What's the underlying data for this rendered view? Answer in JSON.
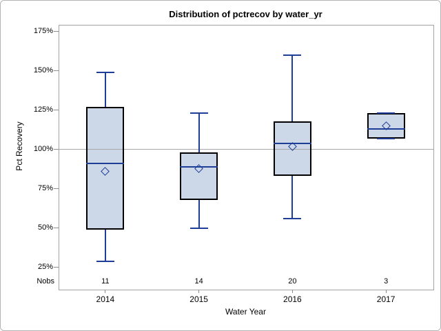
{
  "figure": {
    "title": "Distribution of pctrecov by water_yr",
    "y_axis_label": "Pct Recovery",
    "x_axis_label": "Water Year",
    "nobs_label": "Nobs"
  },
  "chart_data": {
    "type": "boxplot",
    "title": "Distribution of pctrecov by water_yr",
    "xlabel": "Water Year",
    "ylabel": "Pct Recovery",
    "categories": [
      "2014",
      "2015",
      "2016",
      "2017"
    ],
    "nobs": [
      11,
      14,
      20,
      3
    ],
    "y_ticks": [
      {
        "value": 175,
        "label": "175%"
      },
      {
        "value": 150,
        "label": "150%"
      },
      {
        "value": 125,
        "label": "125%"
      },
      {
        "value": 100,
        "label": "100%"
      },
      {
        "value": 75,
        "label": "75%"
      },
      {
        "value": 50,
        "label": "50%"
      },
      {
        "value": 25,
        "label": "25%"
      }
    ],
    "ylim": [
      11.25,
      179.25
    ],
    "ref_line": 100,
    "grid": false,
    "legend": "none",
    "series": [
      {
        "category": "2014",
        "n": 11,
        "whisker_low": 29,
        "q1": 49,
        "median": 91,
        "mean": 86,
        "q3": 127,
        "whisker_high": 149
      },
      {
        "category": "2015",
        "n": 14,
        "whisker_low": 50,
        "q1": 68,
        "median": 89,
        "mean": 88,
        "q3": 98,
        "whisker_high": 123
      },
      {
        "category": "2016",
        "n": 20,
        "whisker_low": 56,
        "q1": 83,
        "median": 104,
        "mean": 102,
        "q3": 118,
        "whisker_high": 160
      },
      {
        "category": "2017",
        "n": 3,
        "whisker_low": 107,
        "q1": 107,
        "median": 113,
        "mean": 115,
        "q3": 123,
        "whisker_high": 123
      }
    ],
    "colors": {
      "box_fill": "#ccd7e8",
      "box_border": "#000000",
      "blue_line": "#1e3d96",
      "ref_line": "#a6a6a6",
      "axis_frame": "#a3a3a3",
      "tick": "#8c8c8c"
    }
  }
}
